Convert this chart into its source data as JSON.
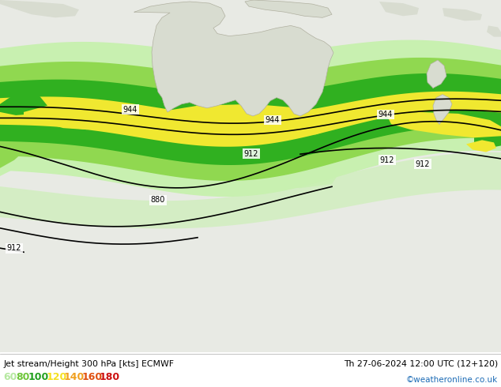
{
  "title_left": "Jet stream/Height 300 hPa [kts] ECMWF",
  "title_right": "Th 27-06-2024 12:00 UTC (12+120)",
  "credit": "©weatheronline.co.uk",
  "legend_values": [
    60,
    80,
    100,
    120,
    140,
    160,
    180
  ],
  "legend_colors": [
    "#b5e8a0",
    "#6ec63a",
    "#22a020",
    "#f5e020",
    "#f0a020",
    "#e05010",
    "#cc1010"
  ],
  "bg_color": "#e0e0e0",
  "land_color": "#d8d8d8",
  "land_fill": "#d0d8c8",
  "figsize": [
    6.34,
    4.9
  ],
  "dpi": 100,
  "c60": "#c8f0b0",
  "c80": "#90d850",
  "c100": "#30b020",
  "c120": "#f0e830",
  "c140": "#f0b020",
  "c160": "#e06010",
  "c180": "#cc1818"
}
